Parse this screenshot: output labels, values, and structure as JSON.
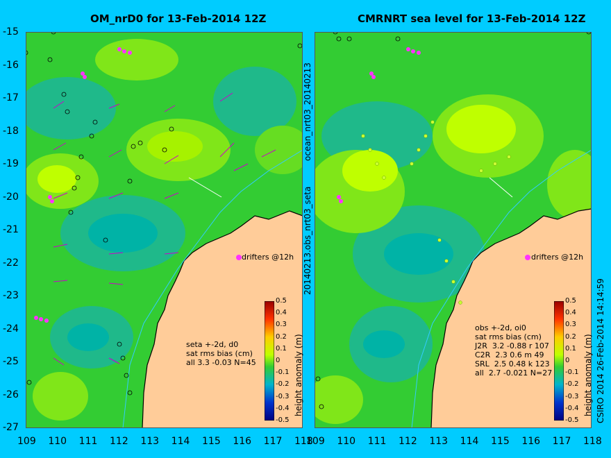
{
  "left": {
    "title": "OM_nrD0 for 13-Feb-2014 12Z",
    "side_label": "ocean_nrt03_20140213",
    "annotation": "seta +-2d, d0\nsat rms bias (cm)\nall 3.3 -0.03 N=45",
    "drifters_label": "drifters @12h"
  },
  "right": {
    "title": "CMRNRT sea level  for 13-Feb-2014 12Z",
    "side_label": "20140213.obs_nrt03_seta",
    "annotation": "obs +-2d, oi0\nsat rms bias (cm)\nJ2R  3.2 -0.88 r 107\nC2R  2.3 0.6 m 49\nSRL  2.5 0.48 k 123\nall  2.7 -0.021 N=27",
    "drifters_label": "drifters @12h",
    "footer": "CSIRO 2014   26-Feb-2014 14:14:59"
  },
  "colorbar": {
    "label": "height anomaly (m)",
    "ticks": [
      "0.5",
      "0.4",
      "0.3",
      "0.2",
      "0.1",
      "0",
      "-0.1",
      "-0.2",
      "-0.3",
      "-0.4",
      "-0.5"
    ]
  },
  "axes": {
    "lat_ticks": [
      "-15",
      "-16",
      "-17",
      "-18",
      "-19",
      "-20",
      "-21",
      "-22",
      "-23",
      "-24",
      "-25",
      "-26",
      "-27"
    ],
    "lon_ticks": [
      "109",
      "110",
      "111",
      "112",
      "113",
      "114",
      "115",
      "116",
      "117",
      "118"
    ]
  },
  "colors": {
    "background": "#00ccff",
    "land": "#ffcc99",
    "sea_base": "#33cc33",
    "sea_low": "#00b3a6",
    "sea_high": "#bfff00",
    "drifter": "#ff33ff",
    "coastline": "#000000",
    "bathy_contour": "#33ccff"
  }
}
